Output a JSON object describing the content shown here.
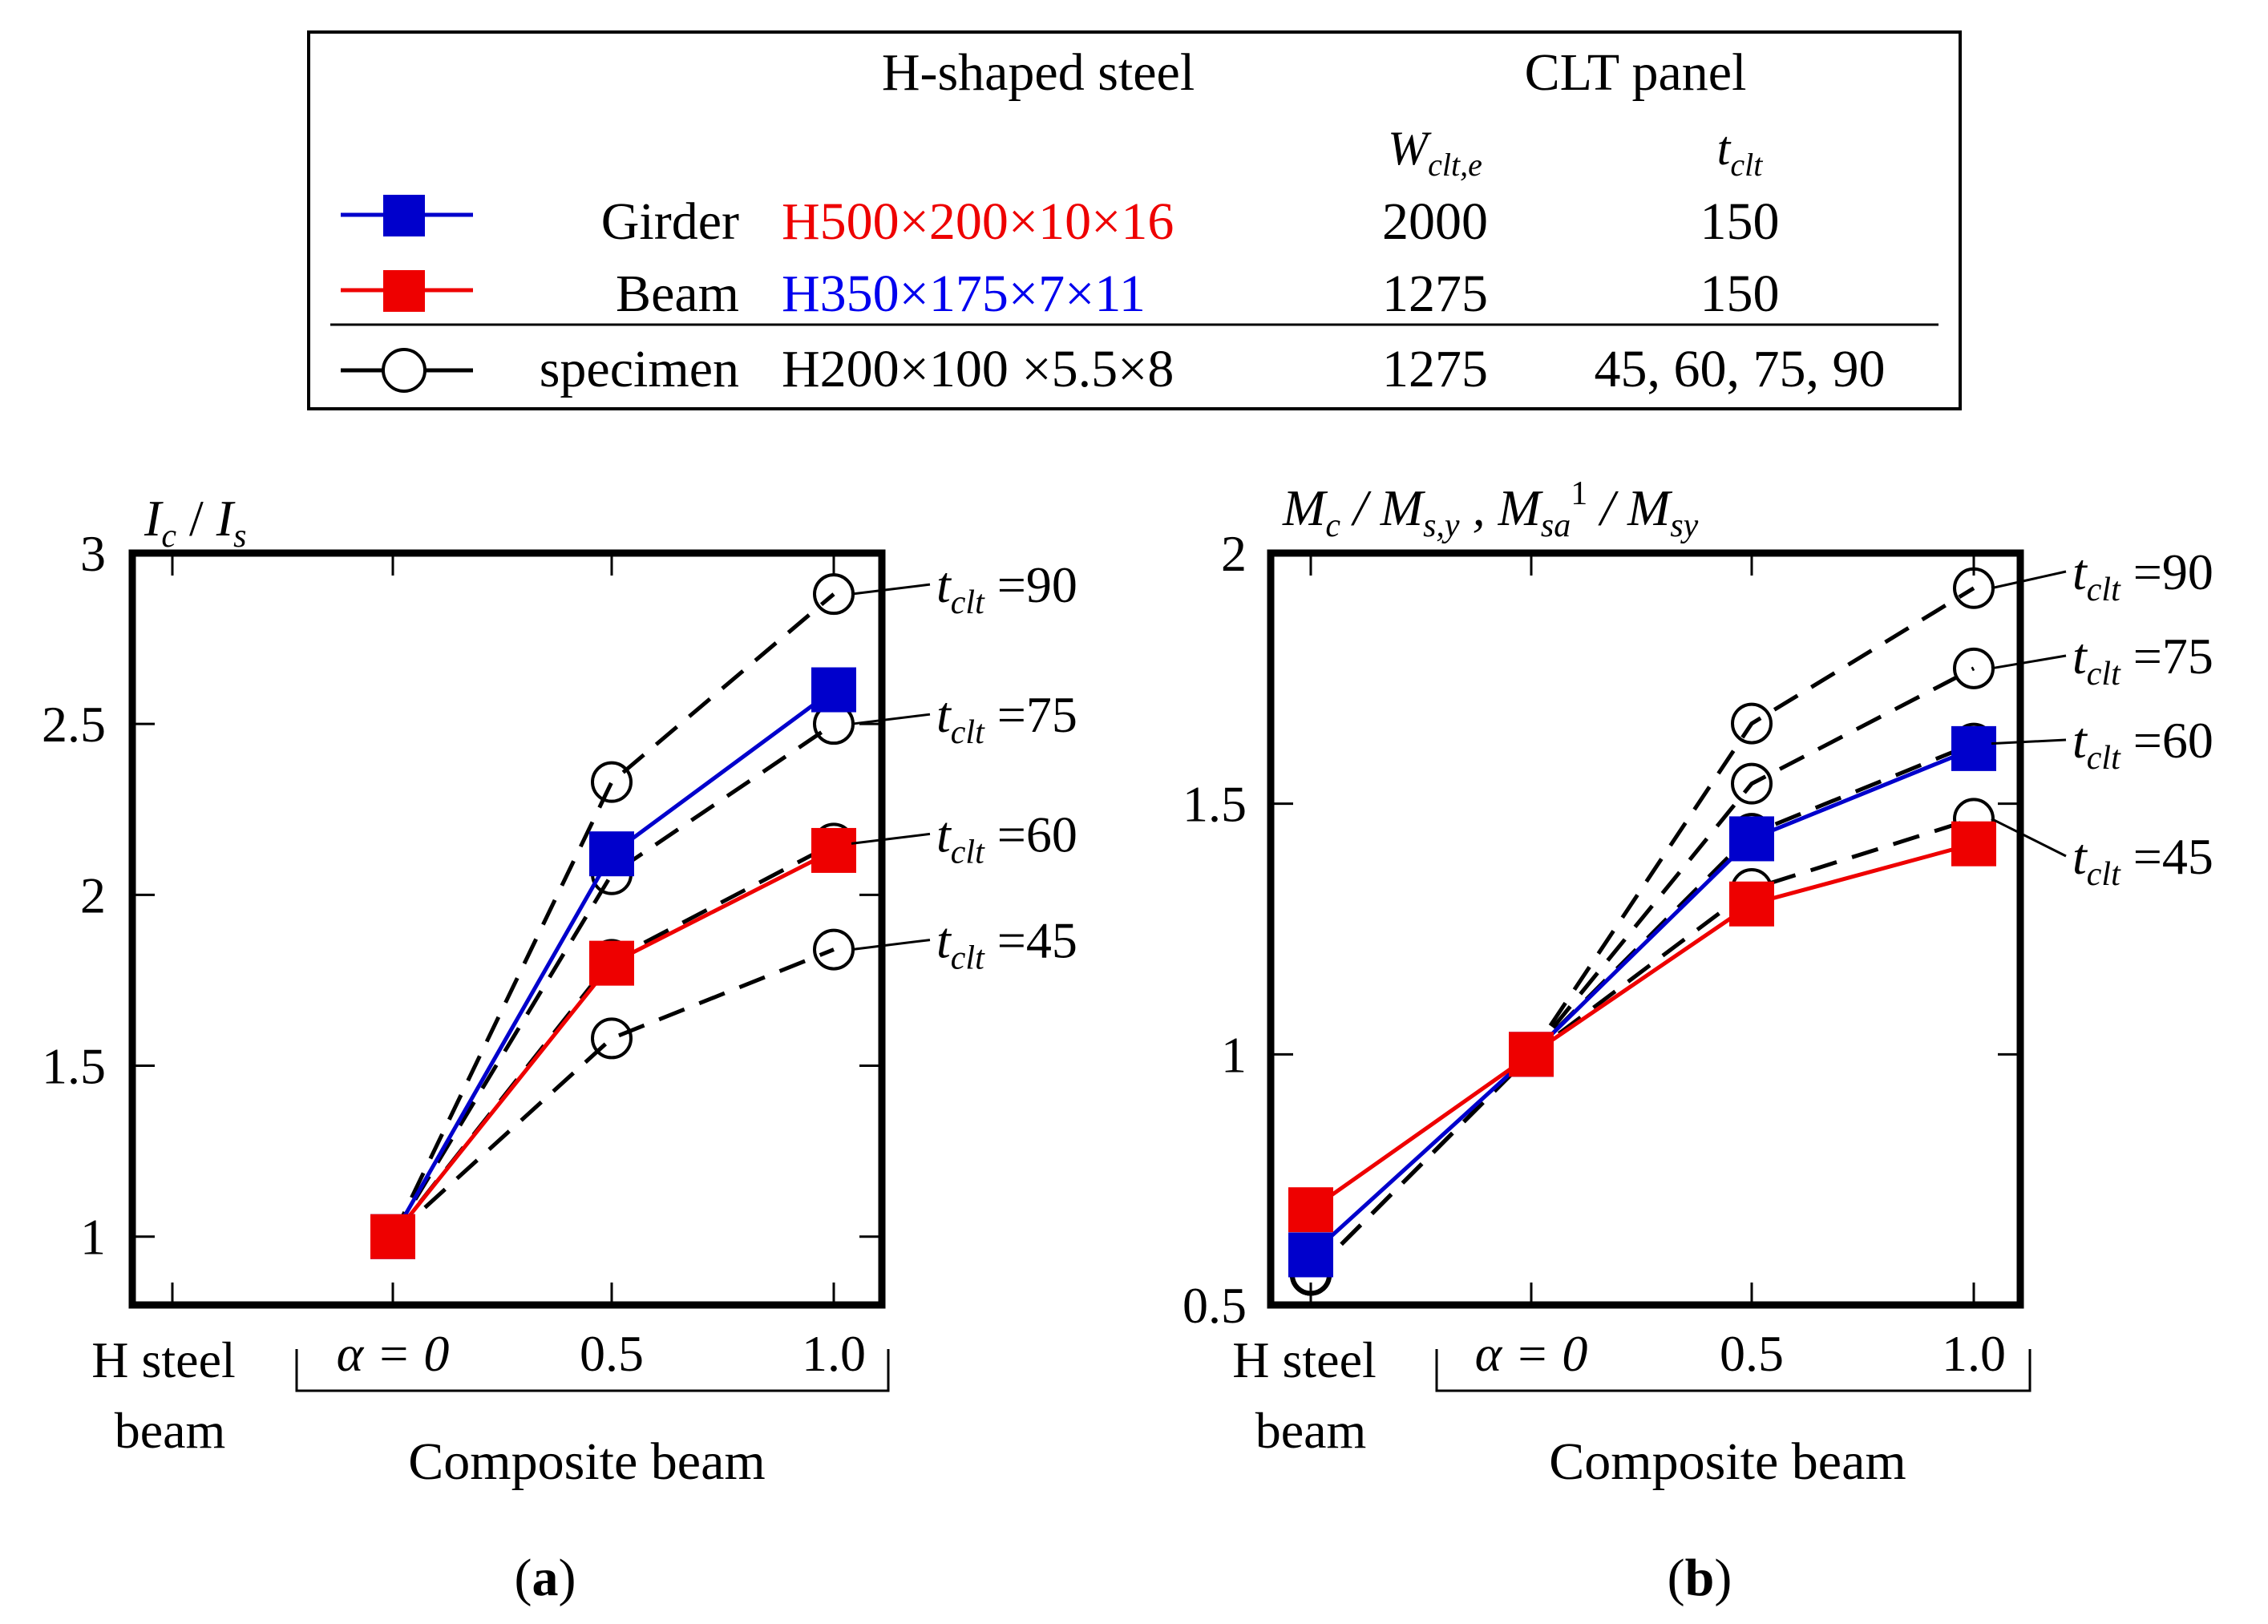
{
  "legend": {
    "headers": {
      "steel": "H-shaped steel",
      "clt_panel": "CLT panel",
      "w_sym": "W",
      "w_sub": "clt,e",
      "t_sym": "t",
      "t_sub": "clt"
    },
    "rows": [
      {
        "name": "Girder",
        "steel": "H500×200×10×16",
        "w": "2000",
        "t": "150",
        "marker": "square",
        "line_color": "#0000cc",
        "text_color": "#ee0000"
      },
      {
        "name": "Beam",
        "steel": "H350×175×7×11",
        "w": "1275",
        "t": "150",
        "marker": "square",
        "line_color": "#ee0000",
        "text_color": "#0000ee"
      },
      {
        "name": "specimen",
        "steel": "H200×100 ×5.5×8",
        "w": "1275",
        "t": "45, 60, 75, 90",
        "marker": "circle",
        "line_color": "#000000",
        "text_color": "#000000"
      }
    ]
  },
  "chart_data": [
    {
      "panel": "(a)",
      "panel_letter": "a",
      "type": "line",
      "ylabel": {
        "sym1": "I",
        "sub1": "c",
        "sep": " / ",
        "sym2": "I",
        "sub2": "s"
      },
      "xcategories": [
        "H steel beam",
        "α = 0",
        "0.5",
        "1.0"
      ],
      "x_group_label": "Composite beam",
      "ylim": [
        0.8,
        3.0
      ],
      "yticks": [
        1,
        1.5,
        2,
        2.5,
        3
      ],
      "ytick_labels": [
        "1",
        "1.5",
        "2",
        "2.5",
        "3"
      ],
      "series": [
        {
          "name": "t=90",
          "label_value": "90",
          "style": "dashed-circle",
          "points": [
            [
              1,
              1.0
            ],
            [
              2,
              2.33
            ],
            [
              3,
              2.88
            ]
          ]
        },
        {
          "name": "t=75",
          "label_value": "75",
          "style": "dashed-circle",
          "points": [
            [
              1,
              1.0
            ],
            [
              2,
              2.06
            ],
            [
              3,
              2.5
            ]
          ]
        },
        {
          "name": "t=60",
          "label_value": "60",
          "style": "dashed-circle",
          "points": [
            [
              1,
              1.0
            ],
            [
              2,
              1.81
            ],
            [
              3,
              2.15
            ]
          ]
        },
        {
          "name": "t=45",
          "label_value": "45",
          "style": "dashed-circle",
          "points": [
            [
              1,
              1.0
            ],
            [
              2,
              1.58
            ],
            [
              3,
              1.84
            ]
          ]
        },
        {
          "name": "Girder",
          "style": "blue-square",
          "color": "#0000cc",
          "points": [
            [
              1,
              1.0
            ],
            [
              2,
              2.12
            ],
            [
              3,
              2.6
            ]
          ]
        },
        {
          "name": "Beam",
          "style": "red-square",
          "color": "#ee0000",
          "points": [
            [
              1,
              1.0
            ],
            [
              2,
              1.8
            ],
            [
              3,
              2.13
            ]
          ]
        }
      ]
    },
    {
      "panel": "(b)",
      "panel_letter": "b",
      "type": "line",
      "ylabel": {
        "p1": "M",
        "p1s": "c",
        "p2": " / M",
        "p2s": "s,y",
        "p3": " , M",
        "p3s": "sa",
        "p3sup": "1",
        "p4": " / M",
        "p4s": "sy"
      },
      "xcategories": [
        "H steel beam",
        "α = 0",
        "0.5",
        "1.0"
      ],
      "x_group_label": "Composite beam",
      "ylim": [
        0.5,
        2.0
      ],
      "yticks": [
        0.5,
        1,
        1.5,
        2
      ],
      "ytick_labels": [
        "0.5",
        "1",
        "1.5",
        "2"
      ],
      "series": [
        {
          "name": "t=90",
          "label_value": "90",
          "style": "dashed-circle",
          "points": [
            [
              0,
              0.56
            ],
            [
              1,
              1.0
            ],
            [
              2,
              1.66
            ],
            [
              3,
              1.93
            ]
          ]
        },
        {
          "name": "t=75",
          "label_value": "75",
          "style": "dashed-circle",
          "points": [
            [
              0,
              0.56
            ],
            [
              1,
              1.0
            ],
            [
              2,
              1.54
            ],
            [
              3,
              1.77
            ]
          ]
        },
        {
          "name": "t=60",
          "label_value": "60",
          "style": "dashed-circle",
          "points": [
            [
              0,
              0.56
            ],
            [
              1,
              1.0
            ],
            [
              2,
              1.44
            ],
            [
              3,
              1.62
            ]
          ]
        },
        {
          "name": "t=45",
          "label_value": "45",
          "style": "dashed-circle",
          "points": [
            [
              0,
              0.56
            ],
            [
              1,
              1.0
            ],
            [
              2,
              1.33
            ],
            [
              3,
              1.47
            ]
          ]
        },
        {
          "name": "Girder",
          "style": "blue-square",
          "color": "#0000cc",
          "points": [
            [
              0,
              0.6
            ],
            [
              1,
              1.0
            ],
            [
              2,
              1.43
            ],
            [
              3,
              1.61
            ]
          ]
        },
        {
          "name": "Beam",
          "style": "red-square",
          "color": "#ee0000",
          "points": [
            [
              0,
              0.69
            ],
            [
              1,
              1.0
            ],
            [
              2,
              1.3
            ],
            [
              3,
              1.42
            ]
          ]
        }
      ]
    }
  ]
}
